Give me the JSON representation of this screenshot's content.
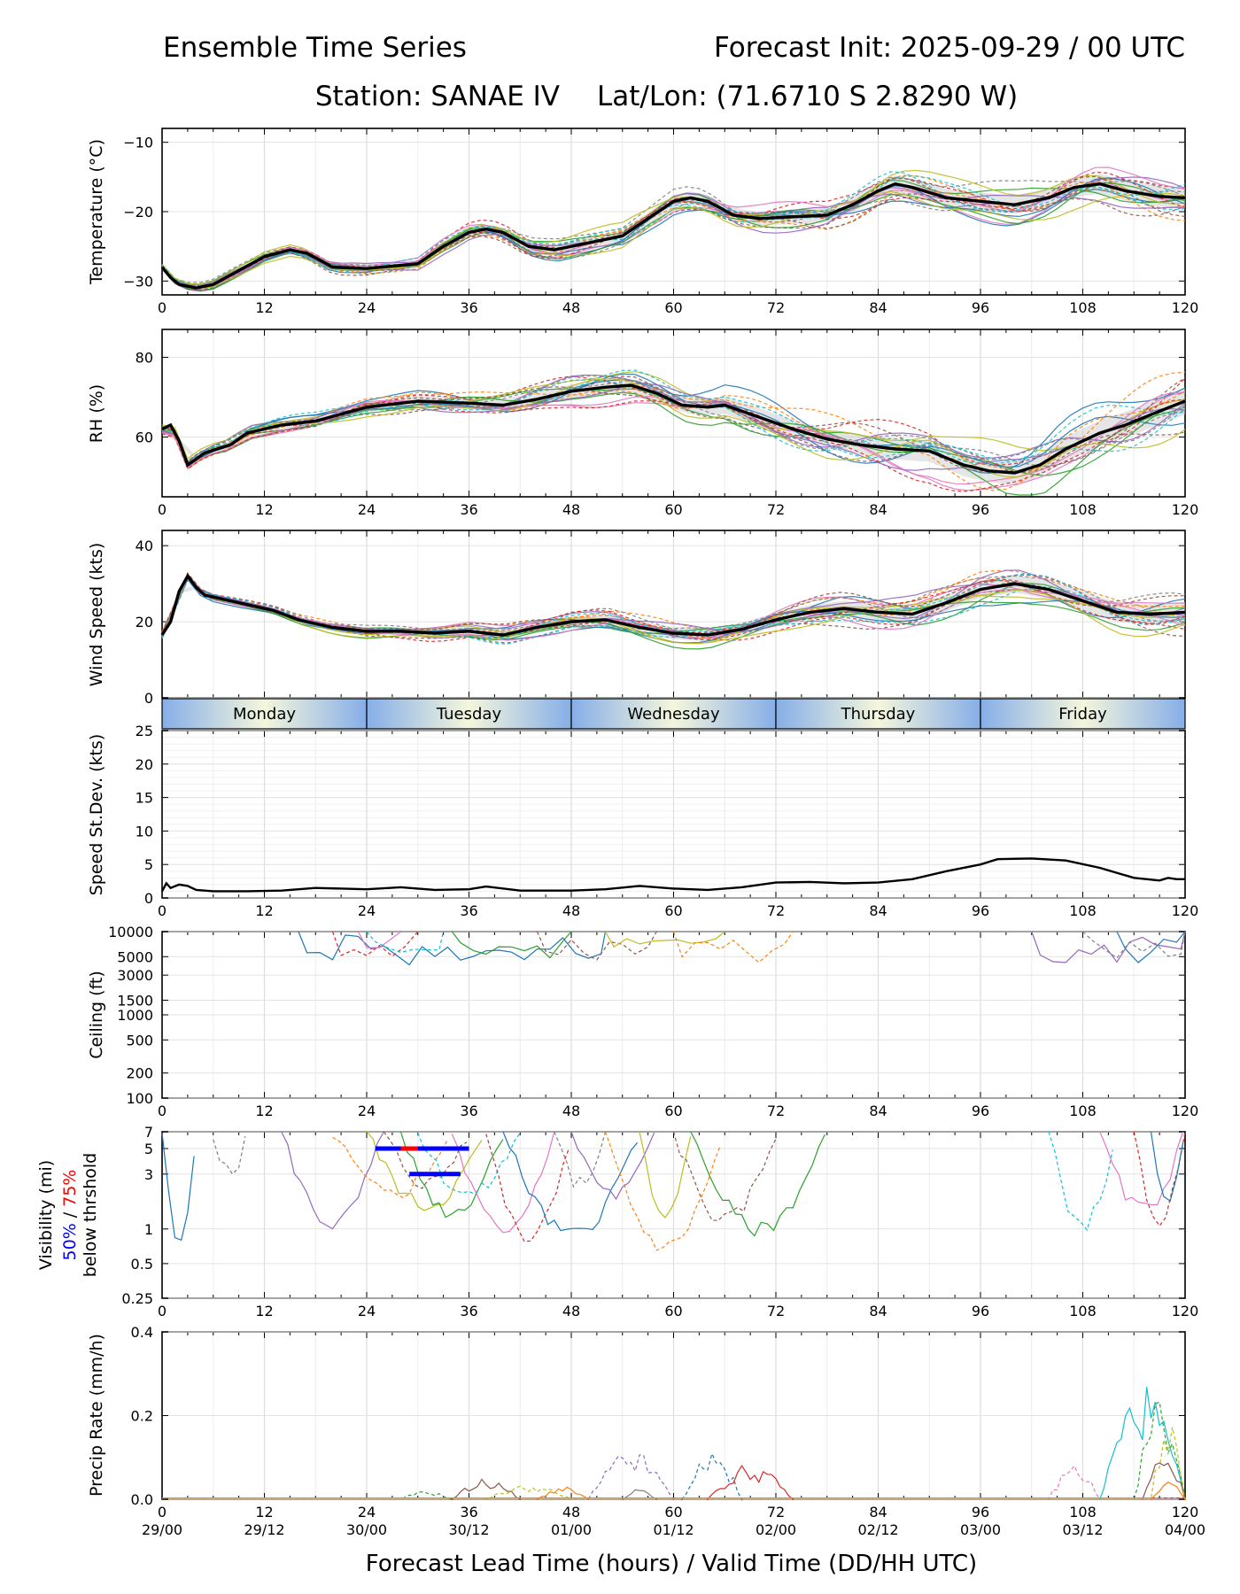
{
  "title": {
    "left": "Ensemble Time Series",
    "right": "Forecast Init: 2025-09-29 / 00 UTC",
    "station": "Station: SANAE IV",
    "latlon": "Lat/Lon: (71.6710 S 2.8290 W)"
  },
  "chart_data": {
    "type": "line",
    "x": {
      "range": [
        0,
        120
      ],
      "ticks": [
        "0",
        "12",
        "24",
        "36",
        "48",
        "60",
        "72",
        "84",
        "96",
        "108",
        "120"
      ],
      "valid_time_ticks": [
        "29/00",
        "29/12",
        "30/00",
        "30/12",
        "01/00",
        "01/12",
        "02/00",
        "02/12",
        "03/00",
        "03/12",
        "04/00"
      ],
      "xlabel": "Forecast Lead Time (hours) / Valid Time (DD/HH UTC)"
    },
    "day_band": [
      "Monday",
      "Tuesday",
      "Wednesday",
      "Thursday",
      "Friday"
    ],
    "colors": {
      "mean": "#000000",
      "spread": "#cccccc",
      "members": [
        "#1f77b4",
        "#ff7f0e",
        "#2ca02c",
        "#d62728",
        "#9467bd",
        "#8c564b",
        "#e377c2",
        "#7f7f7f",
        "#bcbd22",
        "#17becf"
      ]
    },
    "temperature": {
      "ylabel": "Temperature (°C)",
      "ylim": [
        -32,
        -8
      ],
      "yticks": [
        "−10",
        "−20",
        "−30"
      ],
      "mean": [
        [
          0,
          -28
        ],
        [
          1,
          -29.5
        ],
        [
          2,
          -30.5
        ],
        [
          4,
          -31
        ],
        [
          6,
          -30.5
        ],
        [
          9,
          -28.5
        ],
        [
          12,
          -26.5
        ],
        [
          15,
          -25.5
        ],
        [
          17,
          -26
        ],
        [
          20,
          -28
        ],
        [
          24,
          -28.2
        ],
        [
          30,
          -27.5
        ],
        [
          33,
          -25
        ],
        [
          36,
          -23
        ],
        [
          38,
          -22.5
        ],
        [
          40,
          -23
        ],
        [
          43,
          -25
        ],
        [
          46,
          -25.5
        ],
        [
          50,
          -24.5
        ],
        [
          54,
          -23.5
        ],
        [
          57,
          -21
        ],
        [
          60,
          -18.5
        ],
        [
          62,
          -18
        ],
        [
          64,
          -18.5
        ],
        [
          67,
          -20.5
        ],
        [
          70,
          -21
        ],
        [
          73,
          -20.8
        ],
        [
          78,
          -20.5
        ],
        [
          81,
          -19
        ],
        [
          84,
          -17
        ],
        [
          86,
          -16
        ],
        [
          88,
          -16.5
        ],
        [
          92,
          -18
        ],
        [
          96,
          -18.5
        ],
        [
          100,
          -19
        ],
        [
          104,
          -18
        ],
        [
          107,
          -16.5
        ],
        [
          110,
          -16
        ],
        [
          113,
          -17
        ],
        [
          117,
          -17.8
        ],
        [
          120,
          -18
        ]
      ]
    },
    "rh": {
      "ylabel": "RH (%)",
      "ylim": [
        45,
        87
      ],
      "yticks": [
        "80",
        "60"
      ],
      "mean": [
        [
          0,
          62
        ],
        [
          1,
          63
        ],
        [
          2,
          59
        ],
        [
          3,
          53
        ],
        [
          5,
          56
        ],
        [
          8,
          58
        ],
        [
          10,
          61
        ],
        [
          14,
          63
        ],
        [
          18,
          64
        ],
        [
          24,
          67.5
        ],
        [
          30,
          69
        ],
        [
          36,
          68.5
        ],
        [
          40,
          68
        ],
        [
          44,
          69.5
        ],
        [
          48,
          71.5
        ],
        [
          52,
          72.5
        ],
        [
          55,
          73
        ],
        [
          58,
          71
        ],
        [
          61,
          68
        ],
        [
          64,
          67.5
        ],
        [
          66,
          68
        ],
        [
          70,
          65
        ],
        [
          74,
          62
        ],
        [
          78,
          59.5
        ],
        [
          82,
          58
        ],
        [
          86,
          57
        ],
        [
          90,
          56.5
        ],
        [
          94,
          53
        ],
        [
          97,
          51.5
        ],
        [
          100,
          51
        ],
        [
          103,
          53
        ],
        [
          106,
          57
        ],
        [
          110,
          61
        ],
        [
          113,
          63
        ],
        [
          117,
          66.5
        ],
        [
          120,
          69
        ]
      ]
    },
    "wind_speed": {
      "ylabel": "Wind Speed (kts)",
      "ylim": [
        0,
        44
      ],
      "yticks": [
        "40",
        "20",
        "0"
      ],
      "mean": [
        [
          0,
          16.5
        ],
        [
          1,
          20
        ],
        [
          2,
          28
        ],
        [
          3,
          32
        ],
        [
          4,
          29
        ],
        [
          5,
          27
        ],
        [
          7,
          26
        ],
        [
          10,
          24.5
        ],
        [
          13,
          23
        ],
        [
          16,
          20.5
        ],
        [
          20,
          18.5
        ],
        [
          24,
          17.5
        ],
        [
          28,
          17.5
        ],
        [
          32,
          17
        ],
        [
          36,
          17.5
        ],
        [
          40,
          16.5
        ],
        [
          44,
          18.5
        ],
        [
          48,
          20
        ],
        [
          52,
          20.5
        ],
        [
          56,
          18.5
        ],
        [
          60,
          17
        ],
        [
          64,
          16.5
        ],
        [
          68,
          18
        ],
        [
          72,
          20.5
        ],
        [
          76,
          22.5
        ],
        [
          80,
          23.5
        ],
        [
          84,
          22.5
        ],
        [
          88,
          22
        ],
        [
          92,
          25
        ],
        [
          96,
          28.5
        ],
        [
          100,
          30
        ],
        [
          104,
          28.5
        ],
        [
          108,
          25.5
        ],
        [
          112,
          22.5
        ],
        [
          116,
          22
        ],
        [
          120,
          22.5
        ]
      ]
    },
    "speed_stdev": {
      "ylabel": "Speed St.Dev. (kts)",
      "ylim": [
        0,
        25
      ],
      "yticks": [
        "25",
        "20",
        "15",
        "10",
        "5",
        "0"
      ],
      "series": [
        [
          0,
          1
        ],
        [
          0.5,
          2.2
        ],
        [
          1,
          1.5
        ],
        [
          2,
          2
        ],
        [
          3,
          1.8
        ],
        [
          4,
          1.2
        ],
        [
          6,
          1
        ],
        [
          10,
          1
        ],
        [
          14,
          1.1
        ],
        [
          18,
          1.5
        ],
        [
          24,
          1.3
        ],
        [
          28,
          1.6
        ],
        [
          32,
          1.2
        ],
        [
          36,
          1.3
        ],
        [
          38,
          1.7
        ],
        [
          42,
          1.1
        ],
        [
          48,
          1.1
        ],
        [
          52,
          1.3
        ],
        [
          56,
          1.8
        ],
        [
          60,
          1.4
        ],
        [
          64,
          1.2
        ],
        [
          68,
          1.6
        ],
        [
          72,
          2.3
        ],
        [
          76,
          2.4
        ],
        [
          80,
          2.2
        ],
        [
          84,
          2.3
        ],
        [
          88,
          2.8
        ],
        [
          92,
          4
        ],
        [
          96,
          5
        ],
        [
          98,
          5.8
        ],
        [
          102,
          5.9
        ],
        [
          106,
          5.6
        ],
        [
          110,
          4.5
        ],
        [
          114,
          3
        ],
        [
          117,
          2.6
        ],
        [
          118,
          3
        ],
        [
          119,
          2.8
        ],
        [
          120,
          2.8
        ]
      ]
    },
    "ceiling": {
      "ylabel": "Ceiling (ft)",
      "scale": "log",
      "ylim": [
        100,
        10000
      ],
      "yticks": [
        "10000",
        "5000",
        "3000",
        "1500",
        "1000",
        "500",
        "200",
        "100"
      ]
    },
    "visibility": {
      "ylabel_1": "Visibility (mi)",
      "ylabel_50": "50%",
      "ylabel_sep": " / ",
      "ylabel_75": "75%",
      "ylabel_2": "below thrshold",
      "scale": "log",
      "ylim": [
        0.25,
        7
      ],
      "yticks": [
        "7",
        "5",
        "3",
        "1",
        "0.5",
        "0.25"
      ],
      "threshold_bars": [
        {
          "level": 5,
          "start": 25,
          "end": 36,
          "color": "#0000ff",
          "highlight": {
            "start": 28,
            "end": 30,
            "color": "#ff0000"
          }
        },
        {
          "level": 3,
          "start": 29,
          "end": 35,
          "color": "#0000ff"
        }
      ]
    },
    "precip": {
      "ylabel": "Precip Rate (mm/h)",
      "ylim": [
        0,
        0.4
      ],
      "yticks": [
        "0.4",
        "0.2",
        "0.0"
      ]
    }
  }
}
